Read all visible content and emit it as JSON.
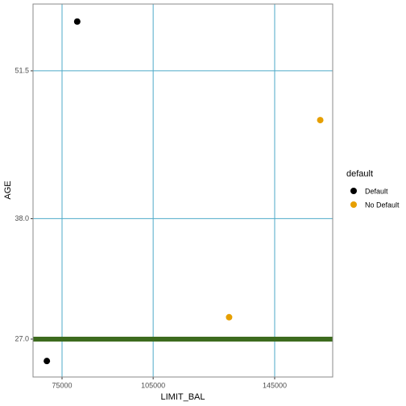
{
  "chart_data": {
    "type": "scatter",
    "x_label": "LIMIT_BAL",
    "y_label": "AGE",
    "legend_title": "default",
    "legend_position": "right",
    "grid": true,
    "grid_color": "#4eaac8",
    "xlim": [
      65450,
      164100
    ],
    "ylim": [
      23.54,
      57.6
    ],
    "xticks": [
      75000,
      105000,
      145000
    ],
    "yticks": [
      51.5,
      {
        "value": 38,
        "label": "38.0"
      },
      {
        "value": 27,
        "label": "27.0"
      }
    ],
    "hline": {
      "y": 27,
      "color": "#3d6b1e"
    },
    "series": [
      {
        "name": "Default",
        "color": "#000000",
        "x": [
          80000,
          70000
        ],
        "values": [
          56,
          25
        ]
      },
      {
        "name": "No Default",
        "color": "#e69f00",
        "x": [
          160000,
          130000
        ],
        "values": [
          47,
          29
        ]
      }
    ]
  }
}
